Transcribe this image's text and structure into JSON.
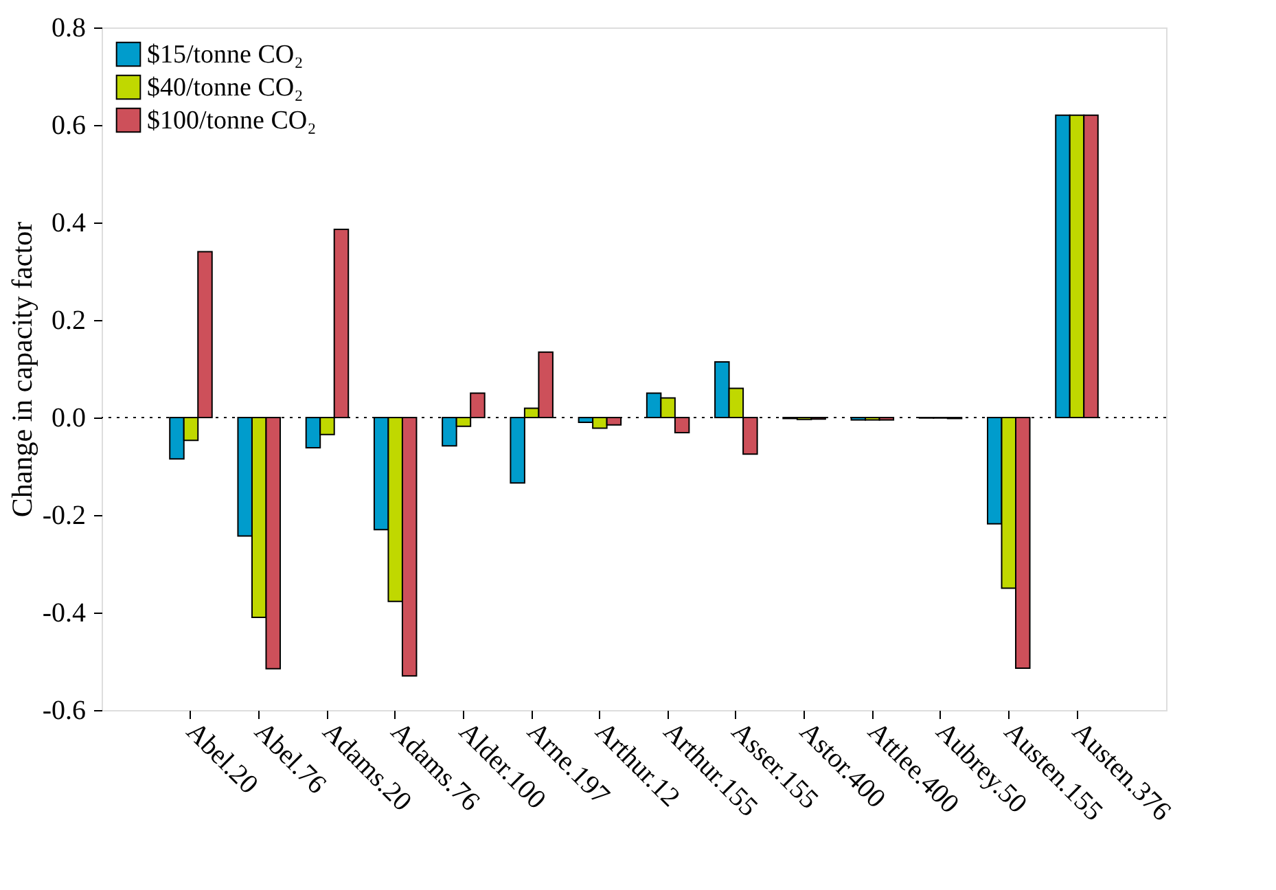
{
  "chart_data": {
    "type": "bar",
    "ylabel": "Change in capacity factor",
    "categories": [
      "Abel.20",
      "Abel.76",
      "Adams.20",
      "Adams.76",
      "Alder.100",
      "Arne.197",
      "Arthur.12",
      "Arthur.155",
      "Asser.155",
      "Astor.400",
      "Attlee.400",
      "Aubrey.50",
      "Austen.155",
      "Austen.376"
    ],
    "series": [
      {
        "name": "$15/tonne CO₂",
        "color": "#009ccc",
        "values": [
          -0.085,
          -0.243,
          -0.062,
          -0.23,
          -0.058,
          -0.134,
          -0.01,
          0.05,
          0.114,
          -0.002,
          -0.005,
          -0.001,
          -0.218,
          0.62
        ]
      },
      {
        "name": "$40/tonne CO₂",
        "color": "#c0d800",
        "values": [
          -0.047,
          -0.41,
          -0.035,
          -0.377,
          -0.018,
          0.019,
          -0.022,
          0.04,
          0.06,
          -0.004,
          -0.005,
          -0.001,
          -0.35,
          0.62
        ]
      },
      {
        "name": "$100/tonne CO₂",
        "color": "#cd505a",
        "values": [
          0.34,
          -0.515,
          0.386,
          -0.53,
          0.05,
          0.134,
          -0.015,
          -0.031,
          -0.075,
          -0.003,
          -0.005,
          -0.002,
          -0.514,
          0.62
        ]
      }
    ],
    "ylim": [
      -0.6,
      0.8
    ],
    "yticks": [
      {
        "value": -0.6,
        "label": "-0.6"
      },
      {
        "value": -0.4,
        "label": "-0.4"
      },
      {
        "value": -0.2,
        "label": "-0.2"
      },
      {
        "value": 0,
        "label": "0.0"
      },
      {
        "value": 0.2,
        "label": "0.2"
      },
      {
        "value": 0.4,
        "label": "0.4"
      },
      {
        "value": 0.6,
        "label": "0.6"
      },
      {
        "value": 0.8,
        "label": "0.8"
      }
    ],
    "ref_lines": [
      {
        "axis": "y",
        "value": 0,
        "color": "#000000",
        "line_style": "dotted"
      }
    ],
    "grid": false,
    "legend": "top left"
  }
}
